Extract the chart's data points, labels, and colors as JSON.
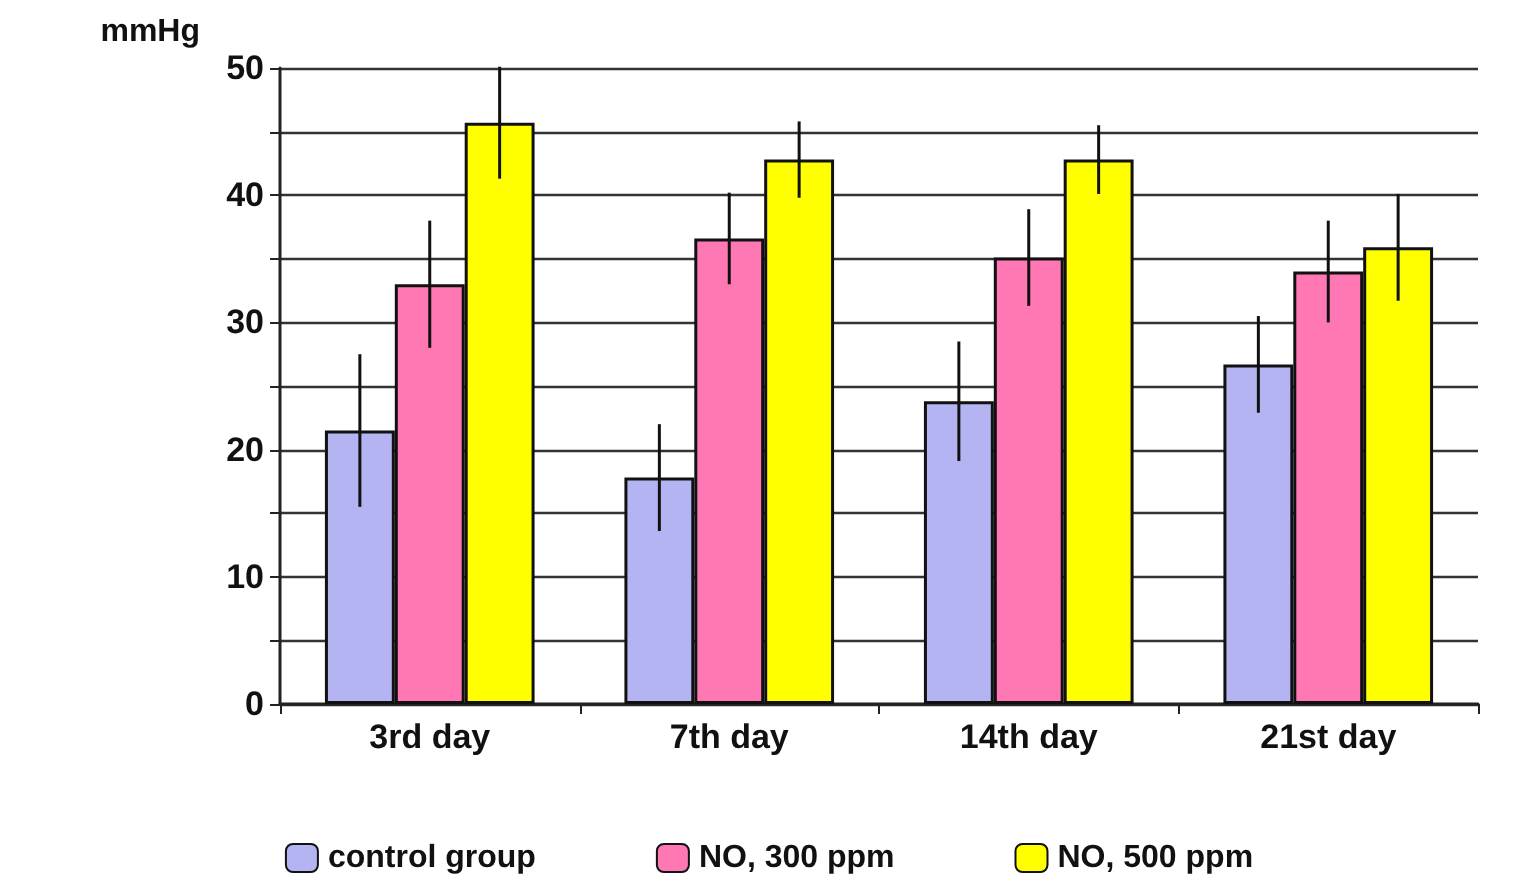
{
  "chart_data": {
    "type": "bar",
    "ylabel": "mmHg",
    "categories": [
      "3rd day",
      "7th day",
      "14th day",
      "21st day"
    ],
    "series": [
      {
        "name": "control group",
        "color": "#b4b4f2",
        "values": [
          21.5,
          17.8,
          23.8,
          26.7
        ],
        "errors": [
          6,
          4.2,
          4.7,
          3.8
        ]
      },
      {
        "name": "NO, 300 ppm",
        "color": "#ff78b4",
        "values": [
          33,
          36.6,
          35.1,
          34
        ],
        "errors": [
          5,
          3.6,
          3.8,
          4
        ]
      },
      {
        "name": "NO, 500 ppm",
        "color": "#ffff00",
        "values": [
          45.7,
          42.8,
          42.8,
          35.9
        ],
        "errors": [
          4.4,
          3,
          2.7,
          4.2
        ]
      }
    ],
    "ylim": [
      0,
      50
    ],
    "yticks": [
      0,
      {
        "value": 5,
        "label": null
      },
      10,
      {
        "value": 15,
        "label": null
      },
      20,
      {
        "value": 25,
        "label": null
      },
      30,
      {
        "value": 35,
        "label": null
      },
      40,
      {
        "value": 45,
        "label": null
      },
      50
    ],
    "grid": "y",
    "legend": "bottom"
  }
}
